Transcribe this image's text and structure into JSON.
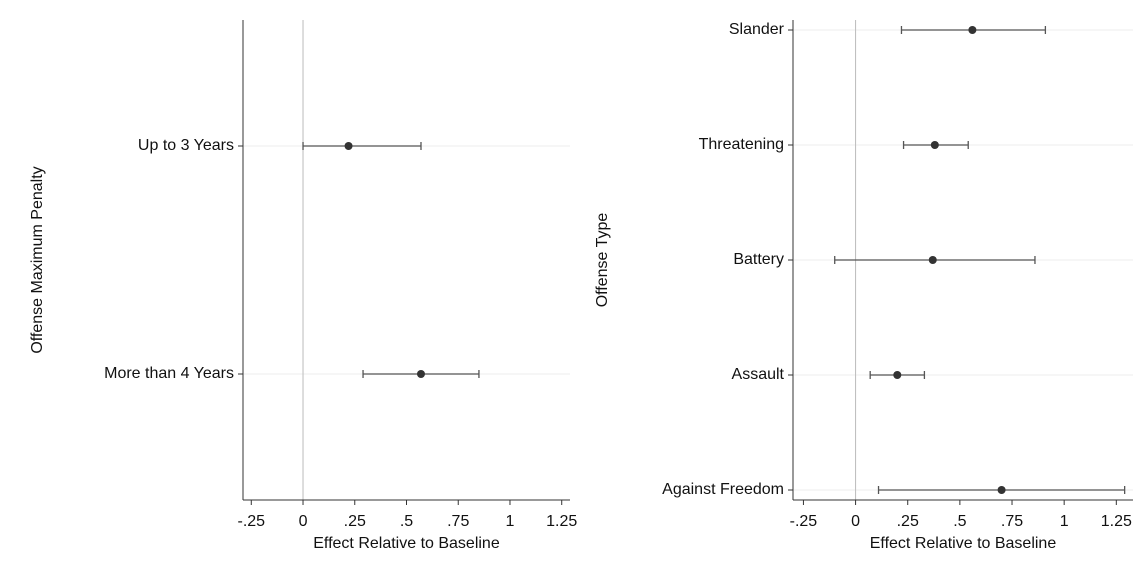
{
  "chart_data": [
    {
      "type": "coefplot",
      "ylabel": "Offense Maximum Penalty",
      "xlabel": "Effect Relative to Baseline",
      "categories": [
        "Up to 3 Years",
        "More than 4 Years"
      ],
      "values": [
        0.22,
        0.57
      ],
      "lower": [
        0.0,
        0.29
      ],
      "upper": [
        0.57,
        0.85
      ],
      "xlim": [
        -0.29,
        1.29
      ],
      "xticks": [
        {
          "value": -0.25,
          "label": "-.25"
        },
        0,
        {
          "value": 0.25,
          "label": ".25"
        },
        {
          "value": 0.5,
          "label": ".5"
        },
        {
          "value": 0.75,
          "label": ".75"
        },
        1,
        {
          "value": 1.25,
          "label": "1.25"
        }
      ],
      "xline": 0,
      "color": "#333333",
      "grid": true
    },
    {
      "type": "coefplot",
      "ylabel": "Offense Type",
      "xlabel": "Effect Relative to Baseline",
      "categories": [
        "Slander",
        "Threatening",
        "Battery",
        "Assault",
        "Against Freedom"
      ],
      "values": [
        0.56,
        0.38,
        0.37,
        0.2,
        0.7
      ],
      "lower": [
        0.22,
        0.23,
        -0.1,
        0.07,
        0.11
      ],
      "upper": [
        0.91,
        0.54,
        0.86,
        0.33,
        1.29
      ],
      "xlim": [
        -0.3,
        1.33
      ],
      "xticks": [
        {
          "value": -0.25,
          "label": "-.25"
        },
        0,
        {
          "value": 0.25,
          "label": ".25"
        },
        {
          "value": 0.5,
          "label": ".5"
        },
        {
          "value": 0.75,
          "label": ".75"
        },
        1,
        {
          "value": 1.25,
          "label": "1.25"
        }
      ],
      "xline": 0,
      "color": "#333333",
      "grid": true
    }
  ]
}
